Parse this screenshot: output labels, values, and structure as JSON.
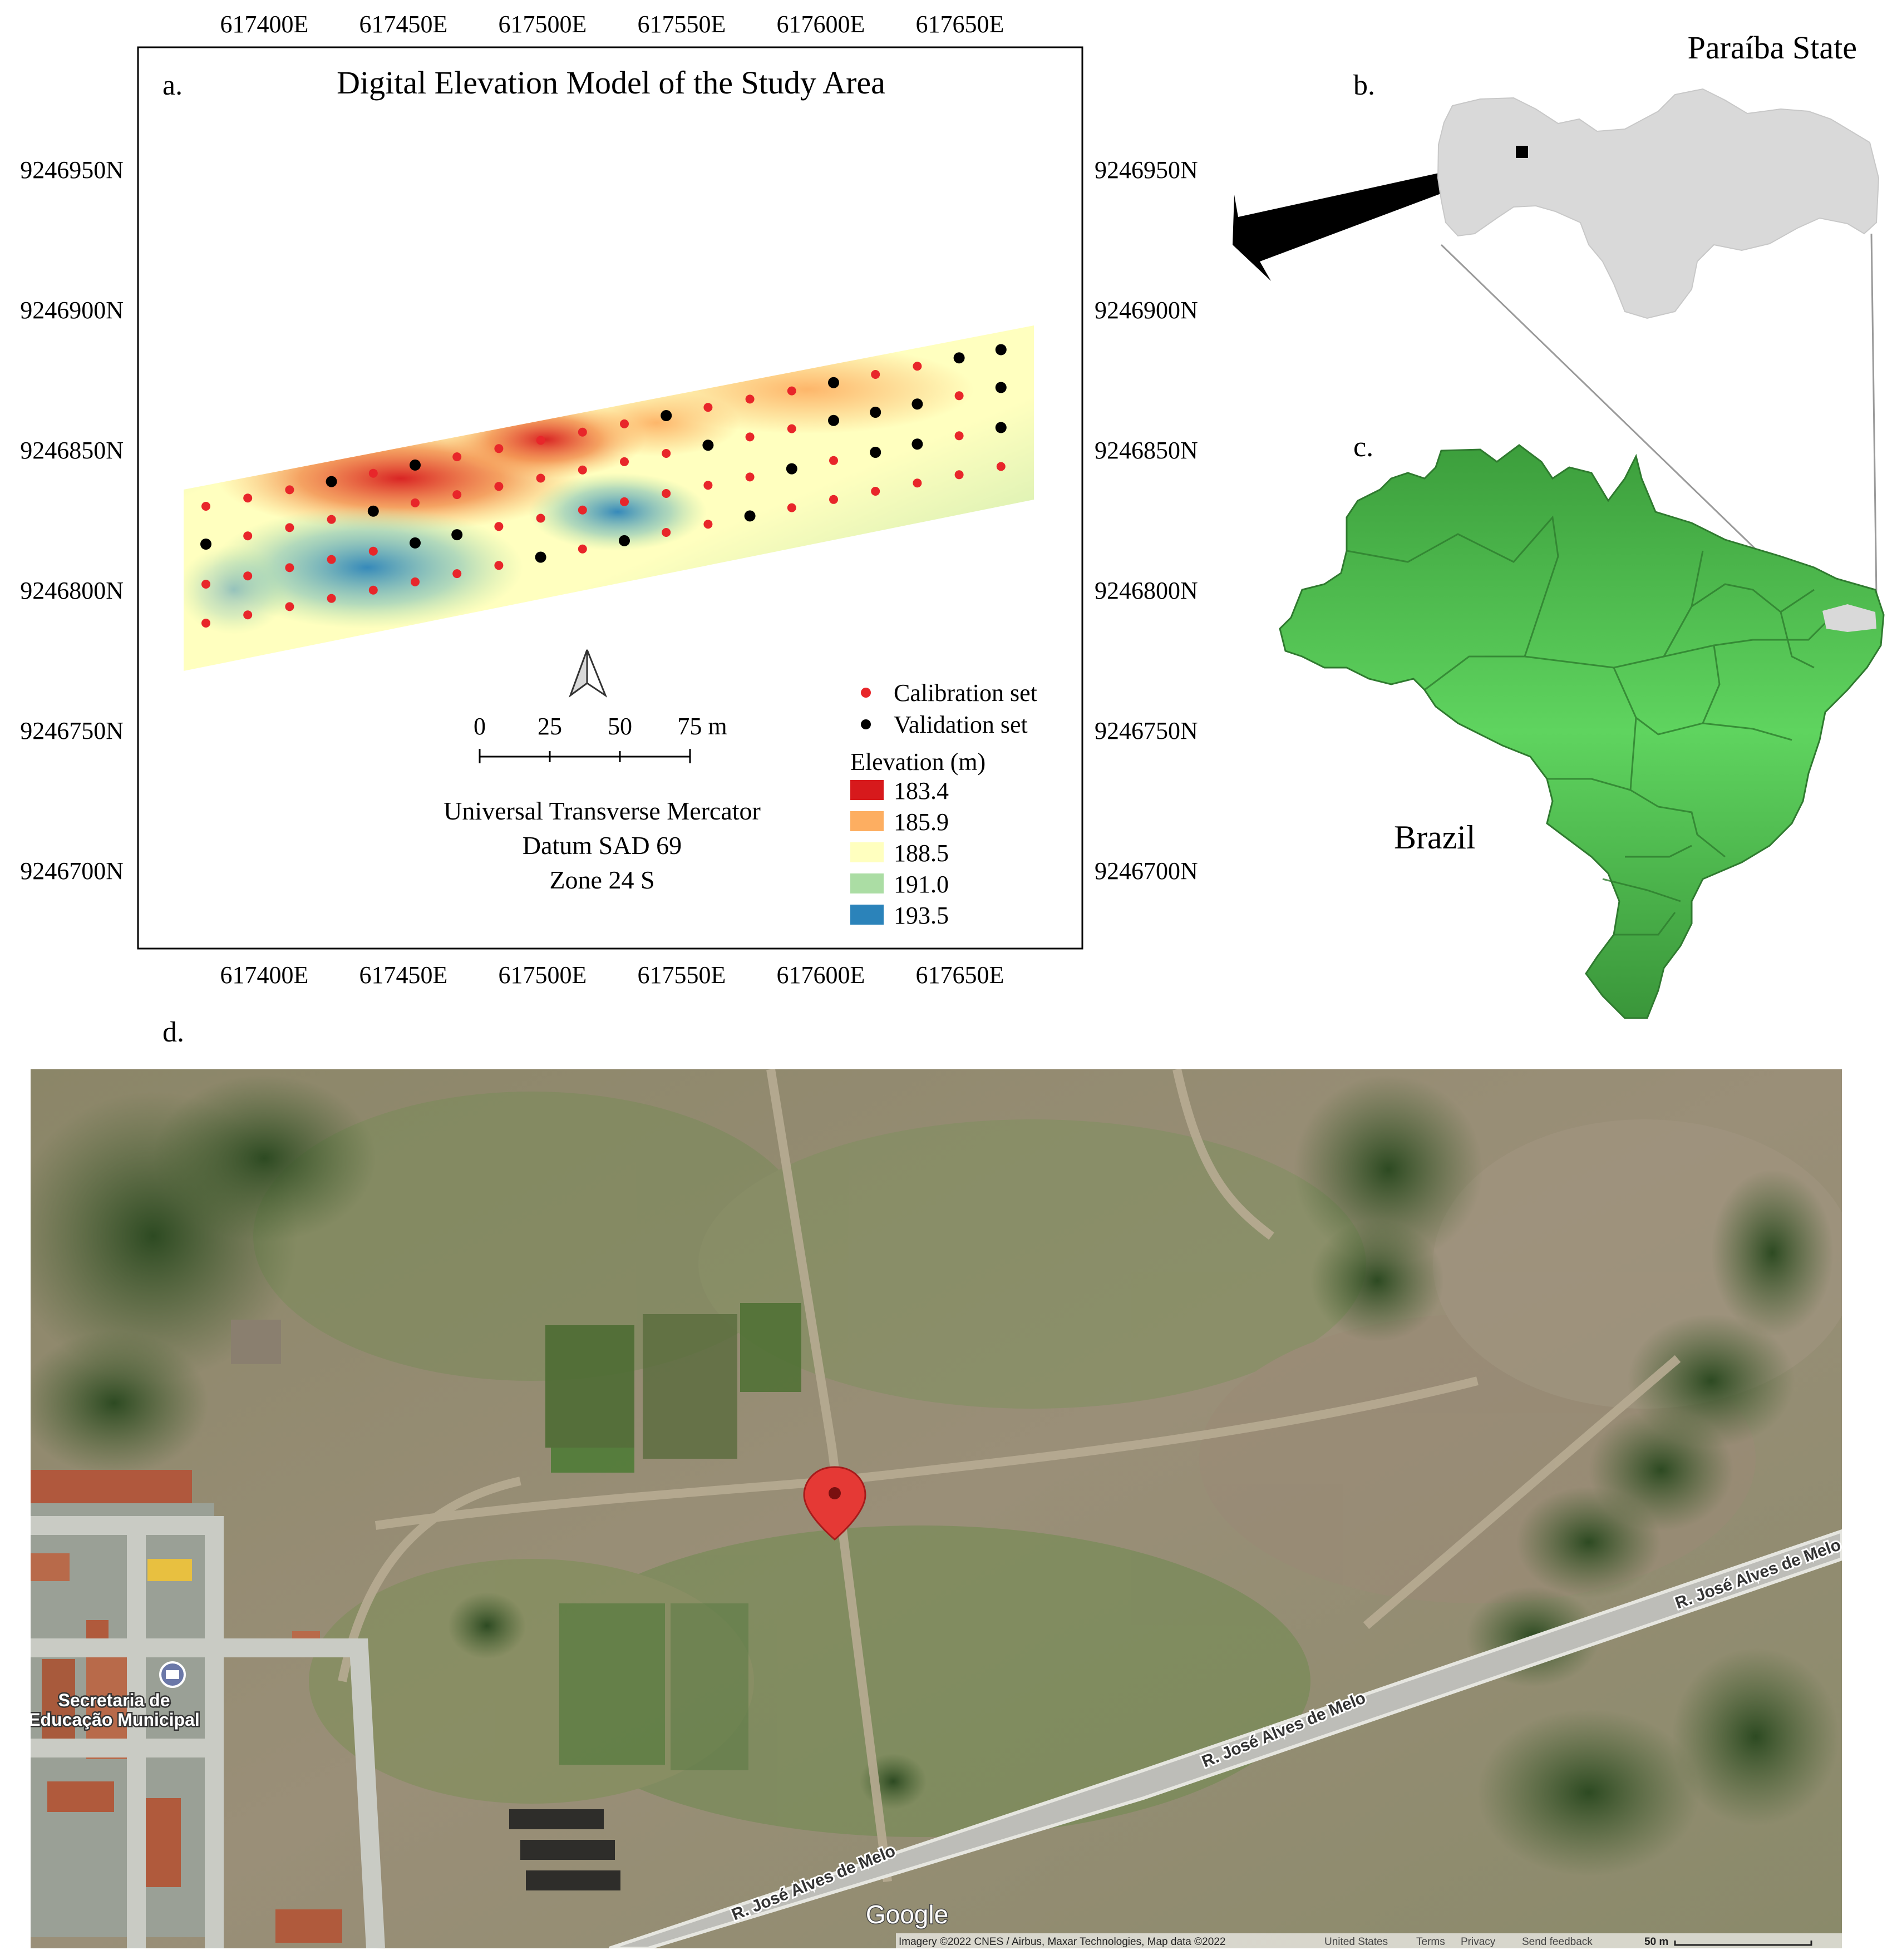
{
  "panel_a": {
    "label": "a.",
    "title": "Digital Elevation Model of the Study Area",
    "x_ticks": [
      "617400E",
      "617450E",
      "617500E",
      "617550E",
      "617600E",
      "617650E"
    ],
    "y_ticks": [
      "9246950N",
      "9246900N",
      "9246850N",
      "9246800N",
      "9246750N",
      "9246700N"
    ],
    "legend_points": [
      {
        "label": "Calibration set",
        "color": "#e8262a"
      },
      {
        "label": "Validation set",
        "color": "#000000"
      }
    ],
    "legend_title": "Elevation (m)",
    "elevation_classes": [
      {
        "label": "183.4",
        "color": "#d7191c"
      },
      {
        "label": "185.9",
        "color": "#fdae61"
      },
      {
        "label": "188.5",
        "color": "#ffffbf"
      },
      {
        "label": "191.0",
        "color": "#abdda4"
      },
      {
        "label": "193.5",
        "color": "#2b83ba"
      }
    ],
    "scale_bar": {
      "labels": [
        "0",
        "25",
        "50",
        "75 m"
      ]
    },
    "projection": [
      "Universal Transverse Mercator",
      "Datum SAD 69",
      "Zone 24 S"
    ]
  },
  "panel_b": {
    "label": "b.",
    "title": "Paraíba State",
    "fill": "#d9d9d9"
  },
  "panel_c": {
    "label": "c.",
    "title": "Brazil",
    "fill": "#4fc14f"
  },
  "panel_d": {
    "label": "d.",
    "road_labels": [
      "R. José Alves de Melo",
      "R. José Alves de Melo",
      "R. José Alves de Melo"
    ],
    "poi_label": [
      "Secretaria de",
      "Educação Municipal"
    ],
    "logo": "Google",
    "attribution": "Imagery ©2022 CNES / Airbus, Maxar Technologies, Map data ©2022",
    "footer_links": [
      "United States",
      "Terms",
      "Privacy",
      "Send feedback"
    ],
    "scale": "50 m",
    "marker_color": "#e53935"
  }
}
